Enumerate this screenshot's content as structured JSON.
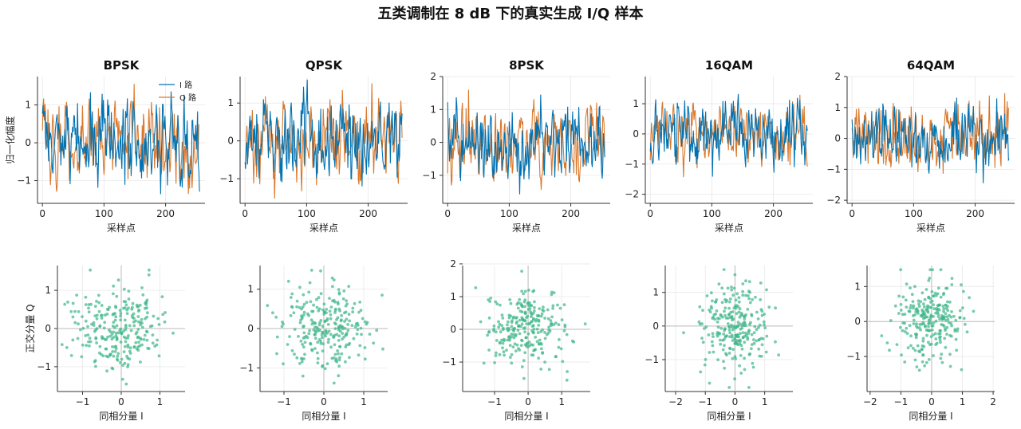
{
  "figure_title": "五类调制在 8 dB 下的真实生成 I/Q 样本",
  "colors": {
    "i_path": "#0072b2",
    "q_path": "#d9782d",
    "scatter": "#3db58a",
    "axis": "#333333",
    "grid": "#e8e8e8",
    "zero_line": "#bbbbbb"
  },
  "chart_data": [
    {
      "type": "line",
      "title": "BPSK",
      "xlabel": "采样点",
      "ylabel": "归一化幅度",
      "xlim": [
        -8,
        264
      ],
      "ylim": [
        -1.6,
        1.75
      ],
      "xticks": [
        0,
        100,
        200
      ],
      "yticks": [
        -1,
        0,
        1
      ],
      "n_samples": 256,
      "seed": 11,
      "amplitude": 0.72,
      "noise": 0.28,
      "legend": {
        "entries": [
          "I 路",
          "Q 路"
        ],
        "position": "top-right"
      },
      "series": [
        {
          "name": "I 路"
        },
        {
          "name": "Q 路"
        }
      ]
    },
    {
      "type": "line",
      "title": "QPSK",
      "xlabel": "采样点",
      "ylabel": "",
      "xlim": [
        -8,
        264
      ],
      "ylim": [
        -1.65,
        1.7
      ],
      "xticks": [
        0,
        100,
        200
      ],
      "yticks": [
        -1,
        0,
        1
      ],
      "n_samples": 256,
      "seed": 23,
      "amplitude": 0.72,
      "noise": 0.28,
      "series": []
    },
    {
      "type": "line",
      "title": "8PSK",
      "xlabel": "采样点",
      "ylabel": "",
      "xlim": [
        -8,
        264
      ],
      "ylim": [
        -1.85,
        2.0
      ],
      "xticks": [
        0,
        100,
        200
      ],
      "yticks": [
        -1,
        0,
        1,
        2
      ],
      "n_samples": 256,
      "seed": 37,
      "amplitude": 0.75,
      "noise": 0.3,
      "series": []
    },
    {
      "type": "line",
      "title": "16QAM",
      "xlabel": "采样点",
      "ylabel": "",
      "xlim": [
        -8,
        264
      ],
      "ylim": [
        -2.3,
        1.9
      ],
      "xticks": [
        0,
        100,
        200
      ],
      "yticks": [
        -2,
        -1,
        0,
        1
      ],
      "n_samples": 256,
      "seed": 51,
      "amplitude": 0.7,
      "noise": 0.3,
      "series": []
    },
    {
      "type": "line",
      "title": "64QAM",
      "xlabel": "采样点",
      "ylabel": "",
      "xlim": [
        -8,
        264
      ],
      "ylim": [
        -2.1,
        2.0
      ],
      "xticks": [
        0,
        100,
        200
      ],
      "yticks": [
        -2,
        -1,
        0,
        1,
        2
      ],
      "n_samples": 256,
      "seed": 67,
      "amplitude": 0.72,
      "noise": 0.32,
      "series": []
    },
    {
      "type": "scatter",
      "title": "",
      "xlabel": "同相分量 I",
      "ylabel": "正交分量 Q",
      "xlim": [
        -1.65,
        1.65
      ],
      "ylim": [
        -1.65,
        1.65
      ],
      "xticks": [
        -1,
        0,
        1
      ],
      "yticks": [
        -1,
        0,
        1
      ],
      "n_points": 256,
      "seed": 101,
      "spread": 0.9
    },
    {
      "type": "scatter",
      "title": "",
      "xlabel": "同相分量 I",
      "ylabel": "",
      "xlim": [
        -1.6,
        1.6
      ],
      "ylim": [
        -1.6,
        1.6
      ],
      "xticks": [
        -1,
        0,
        1
      ],
      "yticks": [
        -1,
        0,
        1
      ],
      "n_points": 256,
      "seed": 202,
      "spread": 0.9
    },
    {
      "type": "scatter",
      "title": "",
      "xlabel": "同相分量 I",
      "ylabel": "",
      "xlim": [
        -1.95,
        1.85
      ],
      "ylim": [
        -1.9,
        1.95
      ],
      "xticks": [
        -1,
        0,
        1
      ],
      "yticks": [
        -1,
        0,
        1,
        2
      ],
      "n_points": 256,
      "seed": 303,
      "spread": 0.95
    },
    {
      "type": "scatter",
      "title": "",
      "xlabel": "同相分量 I",
      "ylabel": "",
      "xlim": [
        -2.35,
        1.95
      ],
      "ylim": [
        -1.95,
        1.8
      ],
      "xticks": [
        -2,
        -1,
        0,
        1
      ],
      "yticks": [
        -1,
        0,
        1
      ],
      "n_points": 256,
      "seed": 404,
      "spread": 0.95
    },
    {
      "type": "scatter",
      "title": "",
      "xlabel": "同相分量 I",
      "ylabel": "",
      "xlim": [
        -2.1,
        2.05
      ],
      "ylim": [
        -2.0,
        1.6
      ],
      "xticks": [
        -2,
        -1,
        0,
        1,
        2
      ],
      "yticks": [
        -1,
        0,
        1
      ],
      "n_points": 256,
      "seed": 505,
      "spread": 0.95
    }
  ]
}
